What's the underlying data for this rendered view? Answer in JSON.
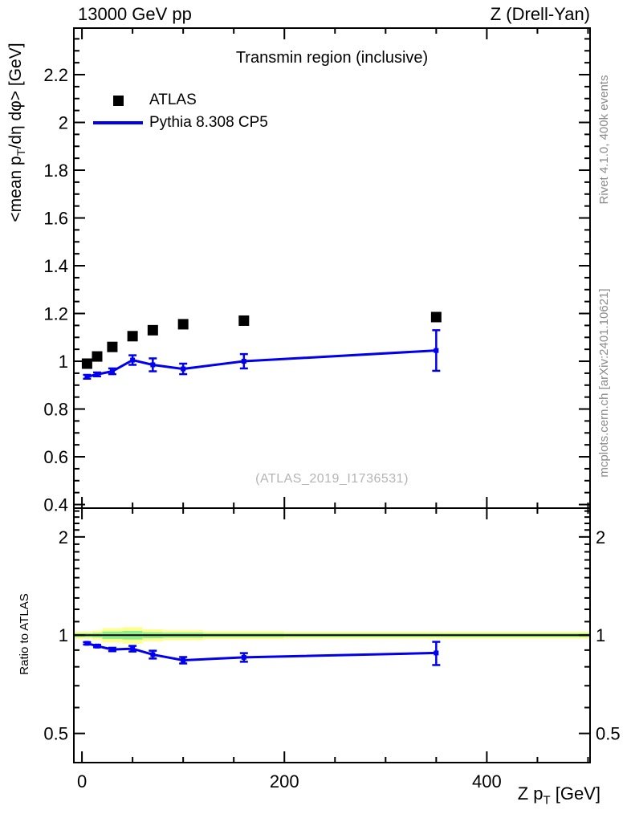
{
  "header": {
    "left": "13000 GeV pp",
    "right": "Z (Drell-Yan)"
  },
  "side_notes": {
    "top": "Rivet 4.1.0,  400k events",
    "bottom": "mcplots.cern.ch [arXiv:2401.10621]"
  },
  "legend": [
    {
      "label": "ATLAS"
    },
    {
      "label": "Pythia 8.308 CP5"
    }
  ],
  "chart_data": {
    "type": "line",
    "title": "Transmin region (inclusive)",
    "watermark": "(ATLAS_2019_I1736531)",
    "xlabel_pre": "Z p",
    "xlabel_sub": "T",
    "xlabel_post": " [GeV]",
    "ylabel_pre": "<mean p",
    "ylabel_sub": "T",
    "ylabel_post": "/dη dφ> [GeV]",
    "ratio_label": "Ratio to ATLAS",
    "x": [
      5,
      15,
      30,
      50,
      70,
      100,
      160,
      350
    ],
    "series": [
      {
        "name": "ATLAS",
        "style": "markers",
        "color": "#000000",
        "values": [
          0.99,
          1.02,
          1.06,
          1.105,
          1.13,
          1.155,
          1.17,
          1.185
        ],
        "errors": [
          0.01,
          0.01,
          0.01,
          0.01,
          0.01,
          0.012,
          0.012,
          0.015
        ]
      },
      {
        "name": "Pythia 8.308 CP5",
        "style": "line",
        "color": "#0000ee",
        "values": [
          0.935,
          0.945,
          0.958,
          1.005,
          0.985,
          0.968,
          1.0,
          1.045
        ],
        "errors": [
          0.008,
          0.008,
          0.012,
          0.02,
          0.027,
          0.022,
          0.03,
          0.085
        ]
      }
    ],
    "ratio": {
      "values": [
        0.944,
        0.926,
        0.904,
        0.909,
        0.872,
        0.838,
        0.855,
        0.882
      ],
      "errors": [
        0.008,
        0.008,
        0.011,
        0.018,
        0.024,
        0.019,
        0.026,
        0.072
      ]
    },
    "band": {
      "bin_edges": [
        -8,
        10,
        20,
        40,
        60,
        80,
        120,
        200,
        502
      ],
      "yellow_halfwidths": [
        0.025,
        0.032,
        0.05,
        0.058,
        0.042,
        0.035,
        0.028,
        0.024
      ],
      "green_halfwidths": [
        0.013,
        0.016,
        0.026,
        0.03,
        0.021,
        0.018,
        0.014,
        0.012
      ],
      "yellow": "#ffff8f",
      "green": "#8cf18c"
    },
    "axes": {
      "xlim": [
        -8,
        502
      ],
      "xticks": [
        0,
        200,
        400
      ],
      "xminors": [
        50,
        100,
        150,
        250,
        300,
        350,
        450,
        500
      ],
      "main_ylim": [
        0.385,
        2.395
      ],
      "main_yticks": [
        0.4,
        0.6,
        0.8,
        1,
        1.2,
        1.4,
        1.6,
        1.8,
        2,
        2.2
      ],
      "ratio_ylim": [
        0.407,
        2.45
      ],
      "ratio_yticks": [
        0.5,
        1,
        2
      ],
      "ratio_yminors": [
        0.6,
        0.7,
        0.8,
        0.9,
        1.1,
        1.2,
        1.3,
        1.4,
        1.5,
        1.6,
        1.7,
        1.8,
        1.9,
        2.1,
        2.2,
        2.3,
        2.4
      ]
    }
  }
}
